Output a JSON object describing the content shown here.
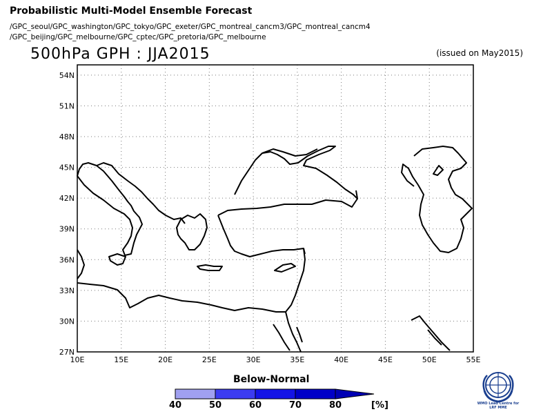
{
  "header": {
    "title": "Probabilistic Multi-Model Ensemble Forecast",
    "models_line1": "/GPC_seoul/GPC_washington/GPC_tokyo/GPC_exeter/GPC_montreal_cancm3/GPC_montreal_cancm4",
    "models_line2": "/GPC_beijing/GPC_melbourne/GPC_cptec/GPC_pretoria/GPC_melbourne",
    "subtitle": "500hPa GPH : JJA2015",
    "issued": "(issued on May2015)"
  },
  "map": {
    "lon_range": [
      10,
      55
    ],
    "lat_range": [
      27,
      55
    ],
    "lat_ticks": [
      "27N",
      "30N",
      "33N",
      "36N",
      "39N",
      "42N",
      "45N",
      "48N",
      "51N",
      "54N"
    ],
    "lon_ticks": [
      "10E",
      "15E",
      "20E",
      "25E",
      "30E",
      "35E",
      "40E",
      "45E",
      "50E",
      "55E"
    ]
  },
  "colorbar": {
    "label": "Below-Normal",
    "ticks": [
      "40",
      "50",
      "60",
      "70",
      "80"
    ],
    "unit": "[%]",
    "colors": [
      "#a0a0f0",
      "#3c3cf0",
      "#1414e6",
      "#0000c8",
      "#0000b4"
    ]
  },
  "logo": {
    "icon": "wmo-emblem-icon",
    "line1": "WMO Lead Centre for",
    "line2": "LRF MME"
  }
}
